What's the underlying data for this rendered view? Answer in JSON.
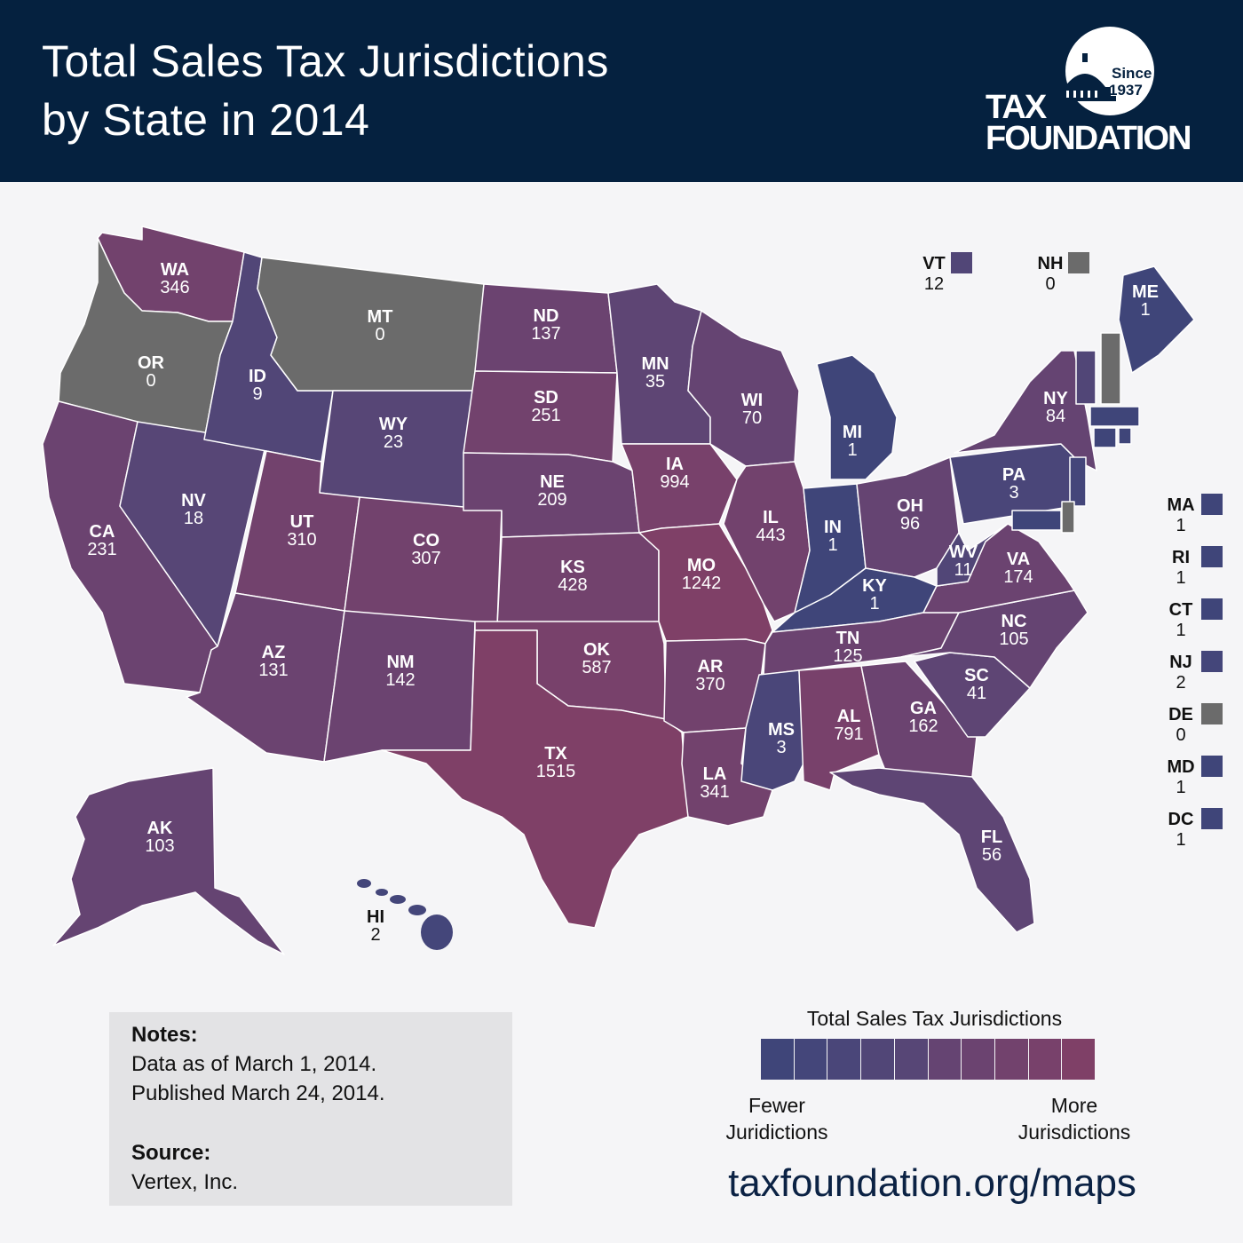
{
  "header": {
    "title_line1": "Total Sales Tax Jurisdictions",
    "title_line2": "by State in 2014",
    "logo_since": "Since",
    "logo_year": "1937",
    "logo_tax": "TAX",
    "logo_foundation": "FOUNDATION"
  },
  "colors": {
    "header_bg": "#05213f",
    "none": "#6b6b6b",
    "scale": [
      "#3f4579",
      "#44467a",
      "#4a4679",
      "#514677",
      "#574676",
      "#5e4574",
      "#654472",
      "#6b4370",
      "#72426d",
      "#78416b",
      "#7f4067"
    ]
  },
  "chart_data": {
    "type": "choropleth",
    "title": "Total Sales Tax Jurisdictions by State in 2014",
    "legend": {
      "title": "Total Sales Tax Jurisdictions",
      "low": "Fewer Juridictions",
      "high": "More Jurisdictions",
      "bins": 10
    },
    "states": [
      {
        "abbr": "WA",
        "value": 346
      },
      {
        "abbr": "OR",
        "value": 0
      },
      {
        "abbr": "CA",
        "value": 231
      },
      {
        "abbr": "NV",
        "value": 18
      },
      {
        "abbr": "ID",
        "value": 9
      },
      {
        "abbr": "MT",
        "value": 0
      },
      {
        "abbr": "WY",
        "value": 23
      },
      {
        "abbr": "UT",
        "value": 310
      },
      {
        "abbr": "CO",
        "value": 307
      },
      {
        "abbr": "AZ",
        "value": 131
      },
      {
        "abbr": "NM",
        "value": 142
      },
      {
        "abbr": "ND",
        "value": 137
      },
      {
        "abbr": "SD",
        "value": 251
      },
      {
        "abbr": "NE",
        "value": 209
      },
      {
        "abbr": "KS",
        "value": 428
      },
      {
        "abbr": "OK",
        "value": 587
      },
      {
        "abbr": "TX",
        "value": 1515
      },
      {
        "abbr": "MN",
        "value": 35
      },
      {
        "abbr": "IA",
        "value": 994
      },
      {
        "abbr": "MO",
        "value": 1242
      },
      {
        "abbr": "AR",
        "value": 370
      },
      {
        "abbr": "LA",
        "value": 341
      },
      {
        "abbr": "WI",
        "value": 70
      },
      {
        "abbr": "IL",
        "value": 443
      },
      {
        "abbr": "MI",
        "value": 1
      },
      {
        "abbr": "IN",
        "value": 1
      },
      {
        "abbr": "OH",
        "value": 96
      },
      {
        "abbr": "KY",
        "value": 1
      },
      {
        "abbr": "TN",
        "value": 125
      },
      {
        "abbr": "MS",
        "value": 3
      },
      {
        "abbr": "AL",
        "value": 791
      },
      {
        "abbr": "GA",
        "value": 162
      },
      {
        "abbr": "FL",
        "value": 56
      },
      {
        "abbr": "SC",
        "value": 41
      },
      {
        "abbr": "NC",
        "value": 105
      },
      {
        "abbr": "VA",
        "value": 174
      },
      {
        "abbr": "WV",
        "value": 11
      },
      {
        "abbr": "PA",
        "value": 3
      },
      {
        "abbr": "NY",
        "value": 84
      },
      {
        "abbr": "ME",
        "value": 1
      },
      {
        "abbr": "AK",
        "value": 103
      },
      {
        "abbr": "HI",
        "value": 2
      },
      {
        "abbr": "VT",
        "value": 12
      },
      {
        "abbr": "NH",
        "value": 0
      },
      {
        "abbr": "MA",
        "value": 1
      },
      {
        "abbr": "RI",
        "value": 1
      },
      {
        "abbr": "CT",
        "value": 1
      },
      {
        "abbr": "NJ",
        "value": 2
      },
      {
        "abbr": "DE",
        "value": 0
      },
      {
        "abbr": "MD",
        "value": 1
      },
      {
        "abbr": "DC",
        "value": 1
      }
    ]
  },
  "notes": {
    "heading": "Notes:",
    "line1": "Data as of March 1, 2014.",
    "line2": "Published March 24, 2014.",
    "source_heading": "Source:",
    "source": "Vertex, Inc."
  },
  "legend": {
    "title": "Total Sales Tax Jurisdictions",
    "low_line1": "Fewer",
    "low_line2": "Juridictions",
    "high_line1": "More",
    "high_line2": "Jurisdictions"
  },
  "footer": {
    "url": "taxfoundation.org/maps"
  }
}
